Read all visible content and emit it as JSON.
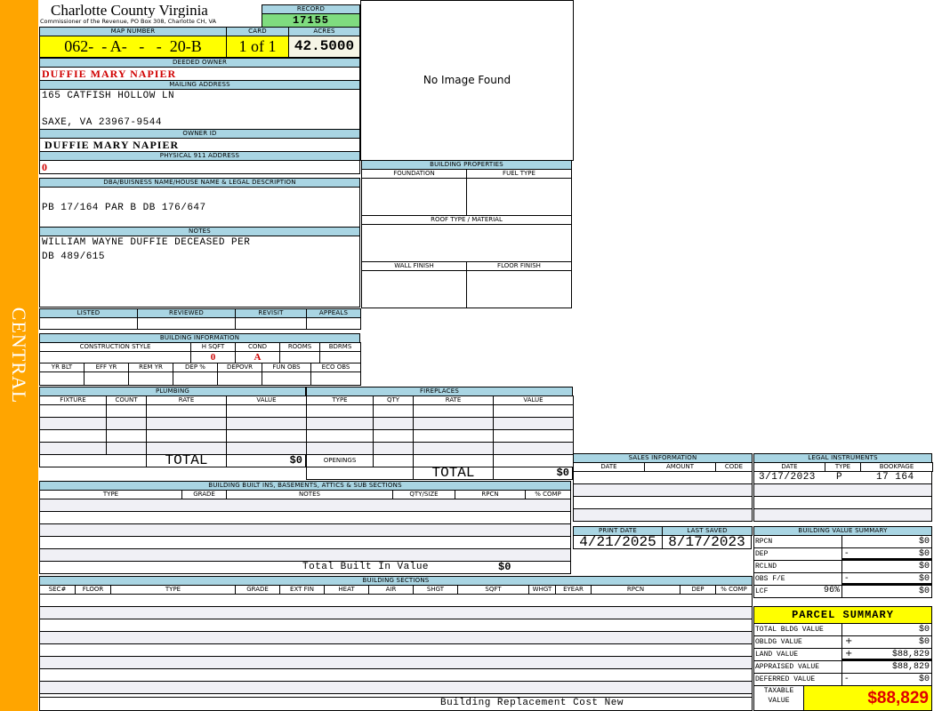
{
  "side_label": "CENTRAL",
  "header": {
    "title": "Charlotte County Virginia",
    "subtitle": "Commissioner of the Revenue, PO Box 308, Charlotte CH, VA",
    "record_label": "RECORD",
    "record": "17155"
  },
  "parcel": {
    "map_number_label": "MAP NUMBER",
    "map_number": "062-  - A-   -   -  20-B",
    "card_label": "CARD",
    "card": "1 of 1",
    "acres_label": "ACRES",
    "acres": "42.5000"
  },
  "owner": {
    "deeded_label": "DEEDED OWNER",
    "deeded": "DUFFIE MARY NAPIER",
    "mailing_label": "MAILING ADDRESS",
    "mailing_line1": "165 CATFISH HOLLOW LN",
    "mailing_line2": "SAXE, VA 23967-9544",
    "owner_id_label": "OWNER ID",
    "owner_id": "DUFFIE MARY NAPIER",
    "physical_label": "PHYSICAL 911 ADDRESS",
    "physical": "0"
  },
  "dba": {
    "label": "DBA/BUISNESS NAME/HOUSE NAME & LEGAL DESCRIPTION",
    "value": "PB 17/164 PAR B DB 176/647"
  },
  "notes": {
    "label": "NOTES",
    "line1": "WILLIAM WAYNE DUFFIE DECEASED PER",
    "line2": "DB 489/615"
  },
  "image": {
    "text": "No Image Found"
  },
  "building_properties": {
    "title": "BUILDING PROPERTIES",
    "foundation": "FOUNDATION",
    "fuel_type": "FUEL TYPE",
    "roof": "ROOF TYPE / MATERIAL",
    "wall": "WALL FINISH",
    "floor": "FLOOR FINISH"
  },
  "review": {
    "headers": [
      "LISTED",
      "REVIEWED",
      "REVISIT",
      "APPEALS"
    ]
  },
  "building_info": {
    "title": "BUILDING INFORMATION",
    "headers1": [
      "CONSTRUCTION STYLE",
      "H SQFT",
      "COND",
      "ROOMS",
      "BDRMS"
    ],
    "values1": [
      "",
      "0",
      "A",
      "",
      ""
    ],
    "headers2": [
      "YR BLT",
      "EFF YR",
      "REM YR",
      "DEP %",
      "DEPOVR",
      "FUN OBS",
      "ECO OBS"
    ]
  },
  "plumbing": {
    "title": "PLUMBING",
    "headers": [
      "FIXTURE",
      "COUNT",
      "RATE",
      "VALUE"
    ],
    "total_label": "TOTAL",
    "total": "$0"
  },
  "fireplaces": {
    "title": "FIREPLACES",
    "headers": [
      "TYPE",
      "QTY",
      "RATE",
      "VALUE"
    ],
    "openings_label": "OPENINGS",
    "total_label": "TOTAL",
    "total": "$0"
  },
  "built_ins": {
    "title": "BUILDING BUILT INS, BASEMENTS, ATTICS & SUB SECTIONS",
    "headers": [
      "TYPE",
      "GRADE",
      "NOTES",
      "QTY/SIZE",
      "RPCN",
      "% COMP"
    ],
    "total_label": "Total Built In Value",
    "total": "$0"
  },
  "sales": {
    "title": "SALES INFORMATION",
    "headers": [
      "DATE",
      "AMOUNT",
      "CODE"
    ]
  },
  "legal": {
    "title": "LEGAL INSTRUMENTS",
    "headers": [
      "DATE",
      "TYPE",
      "BOOKPAGE"
    ],
    "rows": [
      [
        "3/17/2023",
        "P",
        "17 164"
      ]
    ]
  },
  "dates": {
    "headers": [
      "PRINT DATE",
      "LAST SAVED"
    ],
    "print_date": "4/21/2025",
    "last_saved": "8/17/2023"
  },
  "value_summary": {
    "title": "BUILDING VALUE SUMMARY",
    "rows": [
      {
        "label": "RPCN",
        "sign": "",
        "value": "$0"
      },
      {
        "label": "DEP",
        "sign": "-",
        "value": "$0"
      },
      {
        "label": "RCLND",
        "sign": "",
        "value": "$0"
      },
      {
        "label": "OBS F/E",
        "sign": "-",
        "value": "$0"
      },
      {
        "label": "LCF",
        "pct": "96%",
        "sign": "",
        "value": "$0"
      }
    ]
  },
  "sections": {
    "title": "BUILDING SECTIONS",
    "headers": [
      "SEC#",
      "FLOOR",
      "TYPE",
      "GRADE",
      "EXT FIN",
      "HEAT",
      "AIR",
      "SHGT",
      "SQFT",
      "WHGT",
      "EYEAR",
      "RPCN",
      "DEP",
      "% COMP"
    ],
    "footer": "Building Replacement Cost New"
  },
  "parcel_summary": {
    "title": "PARCEL SUMMARY",
    "rows": [
      {
        "label": "TOTAL BLDG VALUE",
        "sign": "",
        "value": "$0"
      },
      {
        "label": "OBLDG VALUE",
        "sign": "+",
        "value": "$0"
      },
      {
        "label": "LAND VALUE",
        "sign": "+",
        "value": "$88,829"
      },
      {
        "label": "APPRAISED VALUE",
        "sign": "",
        "value": "$88,829"
      },
      {
        "label": "DEFERRED VALUE",
        "sign": "-",
        "value": "$0"
      }
    ],
    "taxable_label_1": "TAXABLE",
    "taxable_label_2": "VALUE",
    "taxable": "$88,829"
  },
  "colors": {
    "side": "#ffa500",
    "header_band": "#a9d5e3",
    "record": "#7fdc7f",
    "highlight": "#ffff00",
    "owner_red": "#d00000"
  }
}
